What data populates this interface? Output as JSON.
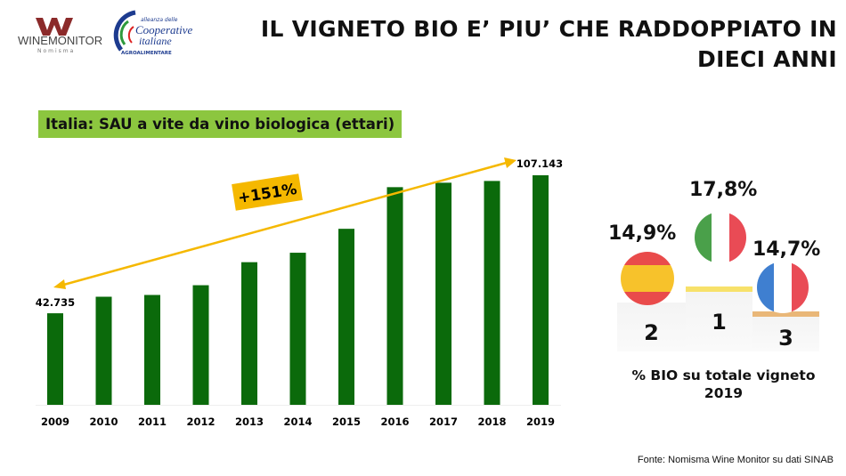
{
  "header": {
    "title_line1": "IL VIGNETO BIO E’ PIU’ CHE RADDOPPIATO IN",
    "title_line2": "DIECI ANNI",
    "logos": {
      "winemonitor": "WINEMONITOR",
      "winemonitor_sub": "Nomisma",
      "coop": "alleanza delle Cooperative italiane AGROALIMENTARE"
    }
  },
  "chart_data": {
    "type": "bar",
    "title": "Italia: SAU a vite da vino biologica (ettari)",
    "categories": [
      "2009",
      "2010",
      "2011",
      "2012",
      "2013",
      "2014",
      "2015",
      "2016",
      "2017",
      "2018",
      "2019"
    ],
    "values": [
      42735,
      50450,
      51280,
      55830,
      66580,
      70990,
      82160,
      101600,
      103670,
      104490,
      107143
    ],
    "data_labels": {
      "first": "42.735",
      "last": "107.143"
    },
    "annotation": "+151%",
    "bar_color": "#0b6a0b",
    "arrow_color": "#f5b800",
    "grid": false
  },
  "podium": {
    "items": [
      {
        "country": "Spain",
        "value": "14,9%",
        "rank": "2",
        "rank_color": "#a8a8a8"
      },
      {
        "country": "Italy",
        "value": "17,8%",
        "rank": "1",
        "rank_color": "#d4a52a"
      },
      {
        "country": "France",
        "value": "14,7%",
        "rank": "3",
        "rank_color": "#c8893a"
      }
    ],
    "caption_line1": "% BIO su totale vigneto",
    "caption_line2": "2019"
  },
  "source": "Fonte: Nomisma Wine Monitor su dati SINAB"
}
